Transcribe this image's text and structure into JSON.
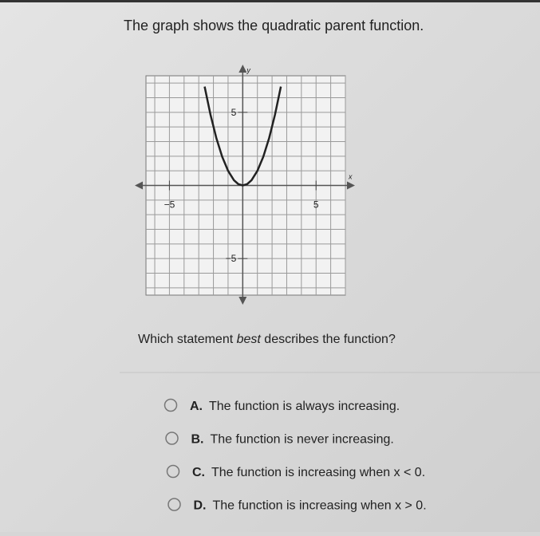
{
  "question": "The graph shows the quadratic parent function.",
  "graph": {
    "type": "line",
    "x_label": "x",
    "y_label": "y",
    "xlim": [
      -6.6,
      7
    ],
    "ylim": [
      -7.5,
      7.5
    ],
    "xgrid": [
      -6,
      -5,
      -4,
      -3,
      -2,
      -1,
      1,
      2,
      3,
      4,
      5,
      6,
      7
    ],
    "ygrid": [
      -7,
      -6,
      -5,
      -4,
      -3,
      -2,
      -1,
      1,
      2,
      3,
      4,
      5,
      6,
      7
    ],
    "xticks": [
      {
        "value": -5,
        "label": "−5"
      },
      5
    ],
    "yticks": [
      {
        "value": -5,
        "label": "−5"
      },
      5
    ],
    "series": [
      {
        "color": "#222222",
        "x": [
          -2.6,
          -2.2,
          -1.8,
          -1.4,
          -1,
          -0.6,
          -0.3,
          0,
          0.3,
          0.6,
          1,
          1.4,
          1.8,
          2.2,
          2.6
        ],
        "values": [
          6.76,
          4.84,
          3.24,
          1.96,
          1,
          0.36,
          0.09,
          0,
          0.09,
          0.36,
          1,
          1.96,
          3.24,
          4.84,
          6.76
        ]
      }
    ]
  },
  "prompt": [
    "Which statement ",
    "best",
    " describes the function?"
  ],
  "options": [
    {
      "letter": "A.",
      "text": "The function is always increasing."
    },
    {
      "letter": "B.",
      "text": "The function is never increasing."
    },
    {
      "letter": "C.",
      "text": "The function is increasing when x < 0."
    },
    {
      "letter": "D.",
      "text": "The function is increasing when x > 0."
    }
  ]
}
